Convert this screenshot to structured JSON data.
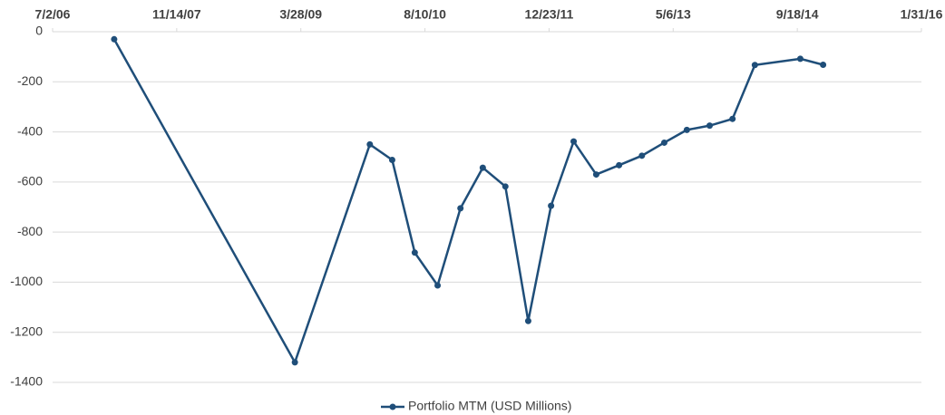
{
  "chart_data": {
    "type": "line",
    "x": [
      "2007-03-07",
      "2009-03-04",
      "2009-12-31",
      "2010-03-31",
      "2010-06-30",
      "2010-09-30",
      "2010-12-31",
      "2011-03-31",
      "2011-06-30",
      "2011-09-30",
      "2011-12-31",
      "2012-03-31",
      "2012-06-30",
      "2012-09-30",
      "2012-12-31",
      "2013-03-31",
      "2013-06-30",
      "2013-09-30",
      "2013-12-31",
      "2014-03-31",
      "2014-09-30",
      "2014-12-31"
    ],
    "series": [
      {
        "name": "Portfolio MTM (USD Millions)",
        "color": "#1f4e79",
        "values": [
          -30,
          -1320,
          -450,
          -512,
          -882,
          -1013,
          -705,
          -543,
          -618,
          -1155,
          -695,
          -438,
          -570,
          -533,
          -495,
          -443,
          -392,
          -375,
          -348,
          -133,
          -108,
          -132
        ]
      }
    ],
    "xlim": [
      "2006-07-02",
      "2016-01-31"
    ],
    "xticks": [
      {
        "value": "2006-07-02",
        "label": "7/2/06"
      },
      {
        "value": "2007-11-14",
        "label": "11/14/07"
      },
      {
        "value": "2009-03-28",
        "label": "3/28/09"
      },
      {
        "value": "2010-08-10",
        "label": "8/10/10"
      },
      {
        "value": "2011-12-23",
        "label": "12/23/11"
      },
      {
        "value": "2013-05-06",
        "label": "5/6/13"
      },
      {
        "value": "2014-09-18",
        "label": "9/18/14"
      },
      {
        "value": "2016-01-31",
        "label": "1/31/16"
      }
    ],
    "ylim": [
      -1400,
      0
    ],
    "yticks": [
      0,
      -200,
      -400,
      -600,
      -800,
      -1000,
      -1200,
      -1400
    ],
    "grid": true,
    "legend": "bottom"
  }
}
